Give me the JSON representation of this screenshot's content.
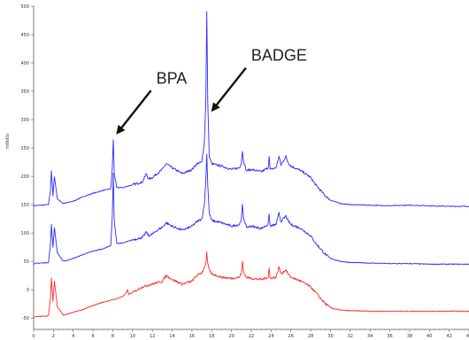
{
  "chart_data": {
    "type": "line",
    "title": "",
    "xlabel": "",
    "ylabel": "mVolts",
    "xlim": [
      0,
      44
    ],
    "ylim": [
      -70,
      500
    ],
    "x_ticks": [
      0,
      2,
      4,
      6,
      8,
      10,
      12,
      14,
      16,
      18,
      20,
      22,
      24,
      26,
      28,
      30,
      32,
      34,
      36,
      38,
      40,
      42,
      44
    ],
    "y_ticks": [
      -50,
      0,
      50,
      100,
      150,
      200,
      250,
      300,
      350,
      400,
      450,
      500
    ],
    "grid": false,
    "legend": "none",
    "series": [
      {
        "color": "#2b2bff",
        "points": [
          [
            0,
            148
          ],
          [
            1.5,
            150
          ],
          [
            1.7,
            175
          ],
          [
            1.8,
            210
          ],
          [
            1.95,
            165
          ],
          [
            2.1,
            200
          ],
          [
            2.4,
            160
          ],
          [
            3,
            152
          ],
          [
            4,
            156
          ],
          [
            5,
            164
          ],
          [
            6,
            170
          ],
          [
            7,
            175
          ],
          [
            7.8,
            178
          ],
          [
            7.95,
            215
          ],
          [
            8.05,
            265
          ],
          [
            8.15,
            205
          ],
          [
            8.4,
            180
          ],
          [
            9,
            180
          ],
          [
            10,
            185
          ],
          [
            11,
            190
          ],
          [
            11.4,
            205
          ],
          [
            11.6,
            195
          ],
          [
            12,
            198
          ],
          [
            12.5,
            205
          ],
          [
            13,
            212
          ],
          [
            13.4,
            222
          ],
          [
            14,
            215
          ],
          [
            15,
            205
          ],
          [
            15.5,
            208
          ],
          [
            16,
            212
          ],
          [
            16.5,
            222
          ],
          [
            17,
            225
          ],
          [
            17.25,
            260
          ],
          [
            17.4,
            330
          ],
          [
            17.5,
            490
          ],
          [
            17.6,
            330
          ],
          [
            17.75,
            235
          ],
          [
            18,
            222
          ],
          [
            19,
            218
          ],
          [
            20,
            212
          ],
          [
            20.8,
            215
          ],
          [
            21,
            225
          ],
          [
            21.1,
            245
          ],
          [
            21.2,
            228
          ],
          [
            21.5,
            210
          ],
          [
            22,
            212
          ],
          [
            23,
            208
          ],
          [
            23.7,
            215
          ],
          [
            23.8,
            235
          ],
          [
            23.9,
            212
          ],
          [
            24.5,
            215
          ],
          [
            24.8,
            235
          ],
          [
            25,
            220
          ],
          [
            25.5,
            235
          ],
          [
            25.7,
            225
          ],
          [
            26,
            218
          ],
          [
            27,
            210
          ],
          [
            28,
            198
          ],
          [
            28.5,
            185
          ],
          [
            29,
            175
          ],
          [
            29.5,
            165
          ],
          [
            30,
            158
          ],
          [
            31,
            152
          ],
          [
            32,
            150
          ],
          [
            34,
            149
          ],
          [
            36,
            148
          ],
          [
            38,
            149
          ],
          [
            40,
            148
          ],
          [
            42,
            147
          ],
          [
            44,
            147
          ]
        ]
      },
      {
        "color": "#2b2bff",
        "points": [
          [
            0,
            46
          ],
          [
            1.5,
            48
          ],
          [
            1.7,
            80
          ],
          [
            1.8,
            115
          ],
          [
            1.95,
            75
          ],
          [
            2.1,
            110
          ],
          [
            2.4,
            65
          ],
          [
            3,
            50
          ],
          [
            4,
            55
          ],
          [
            5,
            62
          ],
          [
            6,
            68
          ],
          [
            7,
            72
          ],
          [
            7.8,
            78
          ],
          [
            7.95,
            130
          ],
          [
            8.05,
            205
          ],
          [
            8.15,
            120
          ],
          [
            8.4,
            82
          ],
          [
            9,
            82
          ],
          [
            10,
            88
          ],
          [
            11,
            92
          ],
          [
            11.4,
            102
          ],
          [
            11.6,
            95
          ],
          [
            12,
            98
          ],
          [
            12.5,
            105
          ],
          [
            13,
            110
          ],
          [
            13.4,
            118
          ],
          [
            14,
            112
          ],
          [
            15,
            105
          ],
          [
            15.5,
            108
          ],
          [
            16,
            112
          ],
          [
            16.5,
            120
          ],
          [
            17,
            125
          ],
          [
            17.25,
            150
          ],
          [
            17.4,
            190
          ],
          [
            17.5,
            240
          ],
          [
            17.6,
            185
          ],
          [
            17.75,
            135
          ],
          [
            18,
            122
          ],
          [
            19,
            118
          ],
          [
            20,
            112
          ],
          [
            20.8,
            115
          ],
          [
            21,
            125
          ],
          [
            21.1,
            150
          ],
          [
            21.2,
            128
          ],
          [
            21.5,
            110
          ],
          [
            22,
            112
          ],
          [
            23,
            108
          ],
          [
            23.7,
            115
          ],
          [
            23.8,
            135
          ],
          [
            23.9,
            112
          ],
          [
            24.5,
            115
          ],
          [
            24.8,
            135
          ],
          [
            25,
            120
          ],
          [
            25.5,
            130
          ],
          [
            25.7,
            122
          ],
          [
            26,
            115
          ],
          [
            27,
            108
          ],
          [
            28,
            95
          ],
          [
            28.5,
            82
          ],
          [
            29,
            72
          ],
          [
            29.5,
            62
          ],
          [
            30,
            55
          ],
          [
            31,
            50
          ],
          [
            32,
            48
          ],
          [
            34,
            47
          ],
          [
            36,
            46
          ],
          [
            38,
            46
          ],
          [
            40,
            45
          ],
          [
            42,
            45
          ],
          [
            44,
            45
          ]
        ]
      },
      {
        "color": "#ff2b2b",
        "points": [
          [
            0,
            -48
          ],
          [
            1.5,
            -46
          ],
          [
            1.7,
            -15
          ],
          [
            1.8,
            20
          ],
          [
            1.95,
            -20
          ],
          [
            2.1,
            15
          ],
          [
            2.4,
            -30
          ],
          [
            3,
            -45
          ],
          [
            4,
            -40
          ],
          [
            5,
            -35
          ],
          [
            6,
            -28
          ],
          [
            7,
            -22
          ],
          [
            8,
            -18
          ],
          [
            9,
            -12
          ],
          [
            9.4,
            -5
          ],
          [
            9.5,
            0
          ],
          [
            9.6,
            -8
          ],
          [
            10,
            -5
          ],
          [
            11,
            5
          ],
          [
            12,
            10
          ],
          [
            13,
            15
          ],
          [
            13.4,
            25
          ],
          [
            14,
            18
          ],
          [
            15,
            10
          ],
          [
            16,
            15
          ],
          [
            16.5,
            25
          ],
          [
            17,
            30
          ],
          [
            17.4,
            45
          ],
          [
            17.5,
            65
          ],
          [
            17.6,
            45
          ],
          [
            17.75,
            35
          ],
          [
            18,
            28
          ],
          [
            19,
            22
          ],
          [
            20,
            20
          ],
          [
            20.8,
            22
          ],
          [
            21,
            30
          ],
          [
            21.1,
            50
          ],
          [
            21.2,
            32
          ],
          [
            21.5,
            22
          ],
          [
            22,
            20
          ],
          [
            23,
            18
          ],
          [
            23.7,
            22
          ],
          [
            23.8,
            38
          ],
          [
            23.9,
            20
          ],
          [
            24.5,
            22
          ],
          [
            24.8,
            40
          ],
          [
            25,
            28
          ],
          [
            25.5,
            35
          ],
          [
            25.7,
            28
          ],
          [
            26,
            22
          ],
          [
            27,
            15
          ],
          [
            28,
            5
          ],
          [
            28.5,
            -5
          ],
          [
            29,
            -15
          ],
          [
            29.5,
            -25
          ],
          [
            30,
            -32
          ],
          [
            31,
            -36
          ],
          [
            32,
            -37
          ],
          [
            34,
            -38
          ],
          [
            36,
            -38
          ],
          [
            38,
            -38
          ],
          [
            40,
            -38
          ],
          [
            42,
            -38
          ],
          [
            44,
            -38
          ]
        ]
      }
    ],
    "annotations": [
      {
        "text": "BPA",
        "x": 8.1,
        "y": 270
      },
      {
        "text": "BADGE",
        "x": 17.7,
        "y": 310
      }
    ]
  }
}
